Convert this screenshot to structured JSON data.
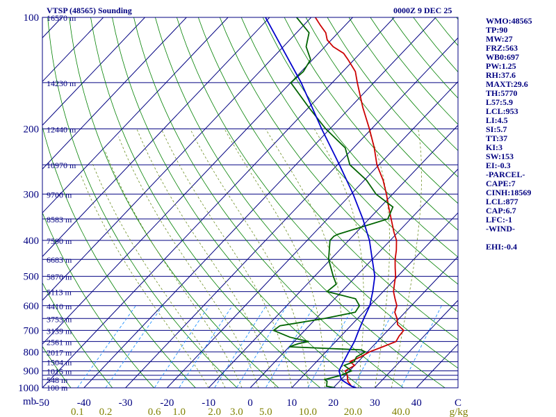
{
  "station_title": "VTSP (48565) Sounding",
  "time_title": "0000Z  9 DEC 25",
  "chart_data": {
    "type": "line",
    "subtype": "skew-T log-P",
    "axis_corner_label": "mb",
    "pressure_ticks": [
      100,
      200,
      300,
      400,
      500,
      600,
      700,
      800,
      900,
      1000
    ],
    "pressure_lines": [
      100,
      150,
      200,
      250,
      300,
      350,
      400,
      450,
      500,
      550,
      600,
      650,
      700,
      750,
      800,
      850,
      900,
      925,
      950,
      1000
    ],
    "height_labels": [
      {
        "p": 100,
        "label": "16570 m"
      },
      {
        "p": 150,
        "label": "14230 m"
      },
      {
        "p": 200,
        "label": "12440 m"
      },
      {
        "p": 250,
        "label": "10970 m"
      },
      {
        "p": 300,
        "label": "9700 m"
      },
      {
        "p": 350,
        "label": "8583 m"
      },
      {
        "p": 400,
        "label": "7590 m"
      },
      {
        "p": 450,
        "label": "6683 m"
      },
      {
        "p": 500,
        "label": "5870 m"
      },
      {
        "p": 550,
        "label": "5113 m"
      },
      {
        "p": 600,
        "label": "4410 m"
      },
      {
        "p": 650,
        "label": "3753 m"
      },
      {
        "p": 700,
        "label": "3139 m"
      },
      {
        "p": 750,
        "label": "2561 m"
      },
      {
        "p": 800,
        "label": "2017 m"
      },
      {
        "p": 850,
        "label": "1504 m"
      },
      {
        "p": 900,
        "label": "1015 m"
      },
      {
        "p": 950,
        "label": "548 m"
      },
      {
        "p": 1000,
        "label": "100 m"
      }
    ],
    "temperature_ticks": [
      -50,
      -40,
      -30,
      -20,
      -10,
      0,
      10,
      20,
      30,
      40
    ],
    "temperature_ticks_last_label": "C",
    "mixing_ratio_ticks": [
      0.1,
      0.2,
      0.6,
      1.0,
      2.0,
      3.0,
      5.0,
      10.0,
      20.0,
      40.0
    ],
    "mixing_ratio_unit": "g/kg",
    "xlim_at_1000mb": [
      -50,
      50
    ],
    "series": [
      {
        "color": "#cc0000",
        "points": [
          [
            1000,
            25.5
          ],
          [
            990,
            24
          ],
          [
            960,
            22
          ],
          [
            925,
            20.5
          ],
          [
            900,
            19
          ],
          [
            870,
            20
          ],
          [
            850,
            18
          ],
          [
            825,
            19.5
          ],
          [
            800,
            20.5
          ],
          [
            775,
            22.5
          ],
          [
            750,
            24.5
          ],
          [
            725,
            24
          ],
          [
            700,
            23.8
          ],
          [
            675,
            21
          ],
          [
            650,
            19.5
          ],
          [
            625,
            17.5
          ],
          [
            600,
            16.5
          ],
          [
            575,
            14.5
          ],
          [
            550,
            12.5
          ],
          [
            525,
            11
          ],
          [
            500,
            9.5
          ],
          [
            475,
            7.5
          ],
          [
            450,
            5.5
          ],
          [
            425,
            3.7
          ],
          [
            400,
            1.5
          ],
          [
            380,
            -1
          ],
          [
            350,
            -4.7
          ],
          [
            325,
            -8
          ],
          [
            300,
            -11.5
          ],
          [
            275,
            -15.5
          ],
          [
            250,
            -20.5
          ],
          [
            225,
            -25
          ],
          [
            200,
            -30.5
          ],
          [
            175,
            -37
          ],
          [
            150,
            -44
          ],
          [
            140,
            -47
          ],
          [
            130,
            -51.5
          ],
          [
            125,
            -54
          ],
          [
            120,
            -58
          ],
          [
            115,
            -61
          ],
          [
            110,
            -63
          ],
          [
            105,
            -66
          ],
          [
            100,
            -69
          ]
        ]
      },
      {
        "color": "#006400",
        "points": [
          [
            1000,
            20.5
          ],
          [
            990,
            18
          ],
          [
            960,
            17
          ],
          [
            950,
            16
          ],
          [
            925,
            19
          ],
          [
            900,
            20.5
          ],
          [
            870,
            17.5
          ],
          [
            850,
            19
          ],
          [
            825,
            18.5
          ],
          [
            800,
            19.5
          ],
          [
            790,
            18
          ],
          [
            775,
            0
          ],
          [
            760,
            1.5
          ],
          [
            750,
            3.5
          ],
          [
            730,
            -2
          ],
          [
            700,
            -7.5
          ],
          [
            680,
            -7
          ],
          [
            670,
            -4
          ],
          [
            650,
            2
          ],
          [
            625,
            8
          ],
          [
            600,
            7.5
          ],
          [
            575,
            5
          ],
          [
            560,
            0
          ],
          [
            550,
            -3.5
          ],
          [
            525,
            -3
          ],
          [
            500,
            -5.5
          ],
          [
            450,
            -10.5
          ],
          [
            400,
            -14.5
          ],
          [
            390,
            -14.5
          ],
          [
            385,
            -14
          ],
          [
            350,
            -5.5
          ],
          [
            325,
            -7
          ],
          [
            300,
            -14
          ],
          [
            275,
            -19.5
          ],
          [
            250,
            -27
          ],
          [
            225,
            -32
          ],
          [
            200,
            -41
          ],
          [
            175,
            -50
          ],
          [
            150,
            -60
          ],
          [
            140,
            -59.5
          ],
          [
            130,
            -60.5
          ],
          [
            120,
            -64.5
          ],
          [
            110,
            -67
          ],
          [
            100,
            -73.5
          ]
        ]
      },
      {
        "color": "#0000cc",
        "points": [
          [
            1000,
            25.5
          ],
          [
            990,
            24
          ],
          [
            960,
            21
          ],
          [
            950,
            20
          ],
          [
            925,
            18.8
          ],
          [
            900,
            17.5
          ],
          [
            850,
            16.5
          ],
          [
            800,
            15.5
          ],
          [
            750,
            14.5
          ],
          [
            700,
            13
          ],
          [
            650,
            11.5
          ],
          [
            600,
            10
          ],
          [
            550,
            7.5
          ],
          [
            500,
            4.5
          ],
          [
            450,
            0
          ],
          [
            400,
            -5
          ],
          [
            350,
            -11.5
          ],
          [
            300,
            -19.5
          ],
          [
            250,
            -29.5
          ],
          [
            200,
            -42
          ],
          [
            150,
            -57.5
          ],
          [
            100,
            -81
          ]
        ]
      }
    ]
  },
  "stats": [
    "WMO:48565",
    "TP:90",
    "MW:27",
    "FRZ:563",
    "WB0:697",
    "PW:1.25",
    "RH:37.6",
    "MAXT:29.6",
    "TH:5770",
    "L57:5.9",
    "LCL:953",
    "LI:4.5",
    "SI:5.7",
    "TT:37",
    "KI:3",
    "SW:153",
    "EI:-0.3",
    "-PARCEL-",
    "CAPE:7",
    "CINH:18569",
    "LCL:877",
    "CAP:6.7",
    "LFC:-1",
    "-WIND-",
    "",
    "EHI:-0.4"
  ],
  "colors": {
    "frame": "#000080",
    "isobar": "#000080",
    "isotherm": "#000080",
    "dry_adiabat": "#008000",
    "moist_adiabat": "#6b8e23",
    "mixing_ratio": "#1e90ff",
    "height_label": "#000080",
    "tick_label": "#000080",
    "mixing_label": "#808000"
  }
}
